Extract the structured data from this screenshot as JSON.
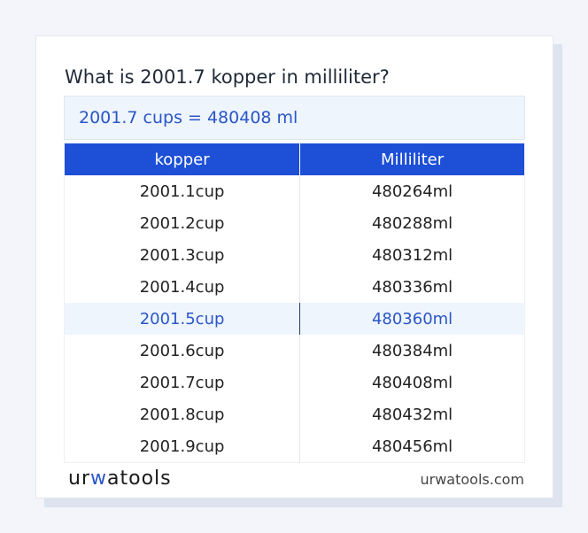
{
  "page": {
    "title": "What is 2001.7 kopper in milliliter?",
    "result": "2001.7 cups = 480408 ml"
  },
  "table": {
    "headers": [
      "kopper",
      "Milliliter"
    ],
    "rows": [
      {
        "cup": "2001.1cup",
        "ml": "480264ml"
      },
      {
        "cup": "2001.2cup",
        "ml": "480288ml"
      },
      {
        "cup": "2001.3cup",
        "ml": "480312ml"
      },
      {
        "cup": "2001.4cup",
        "ml": "480336ml"
      },
      {
        "cup": "2001.5cup",
        "ml": "480360ml"
      },
      {
        "cup": "2001.6cup",
        "ml": "480384ml"
      },
      {
        "cup": "2001.7cup",
        "ml": "480408ml"
      },
      {
        "cup": "2001.8cup",
        "ml": "480432ml"
      },
      {
        "cup": "2001.9cup",
        "ml": "480456ml"
      }
    ],
    "highlighted_row": 4
  },
  "footer": {
    "logo_prefix": "ur",
    "logo_highlight": "w",
    "logo_suffix": "atools",
    "site": "urwatools.com"
  },
  "colors": {
    "accent": "#1d4fd7",
    "highlight_text": "#2a56c6",
    "highlight_bg": "#eef5fd"
  }
}
